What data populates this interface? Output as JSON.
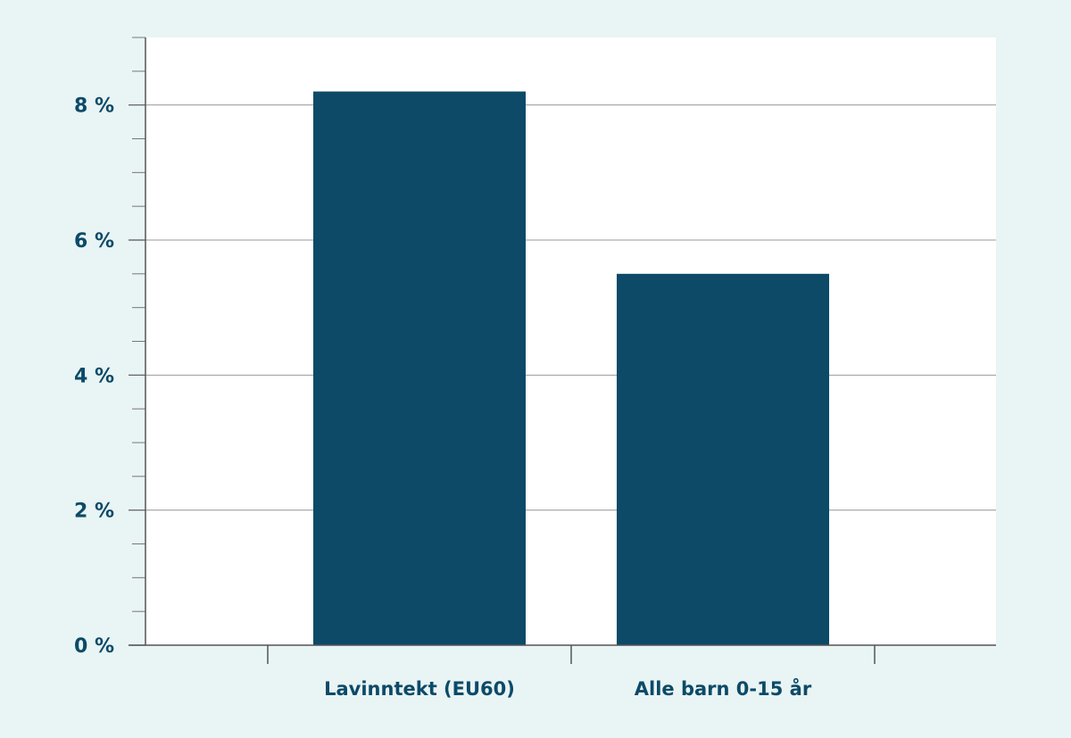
{
  "chart_data": {
    "type": "bar",
    "title": "",
    "xlabel": "",
    "ylabel": "",
    "categories": [
      "Lavinntekt (EU60)",
      "Alle barn 0-15 år"
    ],
    "values": [
      8.2,
      5.5
    ],
    "ylim": [
      0,
      9
    ],
    "y_ticks": [
      0,
      2,
      4,
      6,
      8
    ],
    "y_tick_labels": [
      "0 %",
      "2 %",
      "4 %",
      "6 %",
      "8 %"
    ],
    "grid": true,
    "legend": "none",
    "colors": {
      "bar": "#0c4a68",
      "page_background": "#e9f4f4",
      "plot_background": "#ffffff",
      "text": "#0c4a68",
      "gridline": "#9a9a9a"
    }
  }
}
